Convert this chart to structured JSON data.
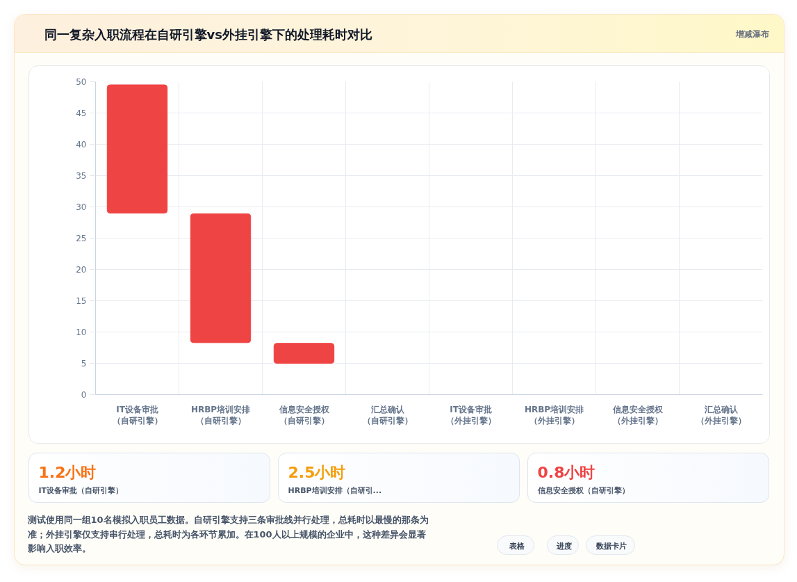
{
  "chart_data": [
    {
      "type": "bar",
      "title": "同一复杂入职流程在自研引擎vs外挂引擎下的处理耗时对比",
      "annotations": [
        "增减瀑布"
      ],
      "categories": [
        "IT设备审批（自研引擎）",
        "HRBP培训安排（自研引擎）",
        "信息安全授权（自研引擎）",
        "汇总确认（自研引擎）",
        "IT设备审批（外挂引擎）",
        "HRBP培训安排（外挂引擎）",
        "信息安全授权（外挂引擎）",
        "汇总确认（外挂引擎）"
      ],
      "base": [
        29,
        8.3,
        5,
        null,
        null,
        null,
        null,
        null
      ],
      "values": [
        20.5,
        20.6,
        3.2,
        null,
        null,
        null,
        null,
        null
      ],
      "color": "#ef4444",
      "ylim": [
        0,
        50
      ],
      "yticks": [
        0,
        5,
        10,
        15,
        20,
        25,
        30,
        35,
        40,
        45,
        50
      ],
      "grid": true
    },
    {
      "type": "other",
      "annotations": [
        "1.2小时",
        "IT设备审批（自研引擎）",
        "2.5小时",
        "HRBP培训安排（自研引...",
        "0.8小时",
        "信息安全授权（自研引擎）"
      ],
      "colors": [
        "#f97316",
        "#f59e0b",
        "#ef4444"
      ]
    },
    {
      "type": "other",
      "annotations": [
        "测试使用同一组10名模拟入职员工数据。自研引擎支持三条审批线并行处理，总耗时以最慢的那条为准；外挂引擎仅支持串行处理，总耗时为各环节累加。在100人以上规模的企业中，这种差异会显著影响入职效率。",
        "表格",
        "进度",
        "数据卡片"
      ]
    }
  ]
}
